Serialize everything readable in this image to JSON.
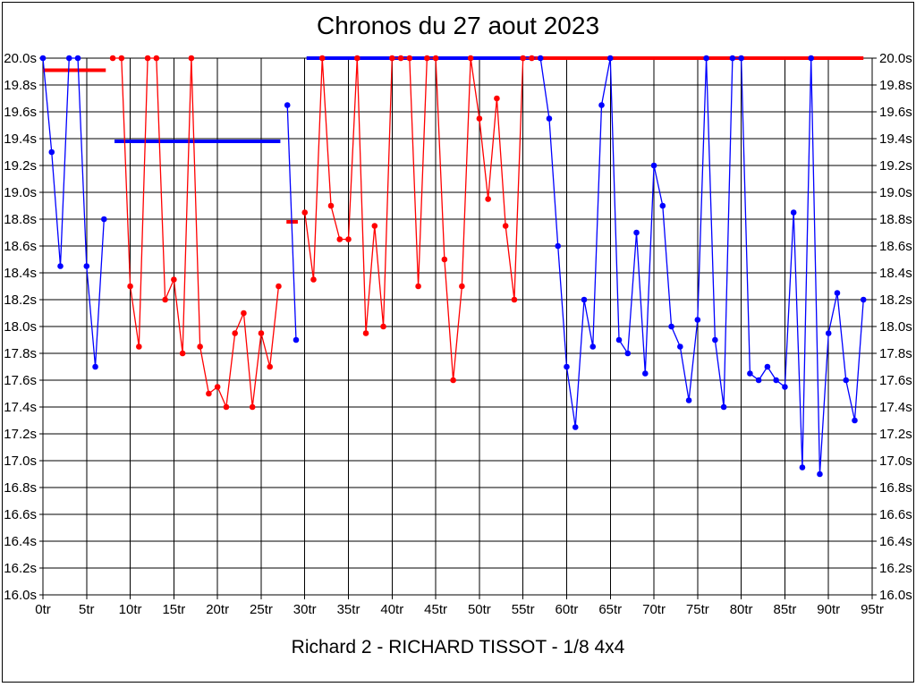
{
  "page": {
    "title": "Chronos du 27 aout 2023",
    "footer": "Richard 2 - RICHARD TISSOT - 1/8 4x4"
  },
  "colors": {
    "red": "#ff0000",
    "blue": "#0000ff",
    "grid": "#000000",
    "background": "#ffffff"
  },
  "chart_data": {
    "type": "line",
    "title": "Chronos du 27 aout 2023",
    "x_unit": "tr",
    "y_unit": "s",
    "ylim": [
      16.0,
      20.0
    ],
    "xlim_laps": [
      0,
      95
    ],
    "grid": true,
    "y_ticks": [
      "20.0s",
      "19.8s",
      "19.6s",
      "19.4s",
      "19.2s",
      "19.0s",
      "18.8s",
      "18.6s",
      "18.4s",
      "18.2s",
      "18.0s",
      "17.8s",
      "17.6s",
      "17.4s",
      "17.2s",
      "17.0s",
      "16.8s",
      "16.6s",
      "16.4s",
      "16.2s",
      "16.0s"
    ],
    "x_ticks": [
      "0tr",
      "5tr",
      "10tr",
      "15tr",
      "20tr",
      "25tr",
      "30tr",
      "35tr",
      "40tr",
      "45tr",
      "50tr",
      "55tr",
      "60tr",
      "65tr",
      "70tr",
      "75tr",
      "80tr",
      "85tr",
      "90tr",
      "95tr"
    ],
    "series": [
      {
        "name": "run-1-blue",
        "color": "blue",
        "start_lap": 0,
        "laps": [
          20.0,
          19.3,
          18.45,
          20.0,
          20.0,
          18.45,
          17.7,
          18.8
        ]
      },
      {
        "name": "run-2-red",
        "color": "red",
        "start_lap": 8,
        "laps": [
          20.0,
          20.0,
          18.3,
          17.85,
          20.0,
          20.0,
          18.2,
          18.35,
          17.8,
          20.0,
          17.85,
          17.5,
          17.55,
          17.4,
          17.95,
          18.1,
          17.4,
          17.95,
          17.7,
          18.3
        ]
      },
      {
        "name": "run-3-blue",
        "color": "blue",
        "start_lap": 28,
        "laps": [
          19.65,
          17.9
        ]
      },
      {
        "name": "run-4-red",
        "color": "red",
        "start_lap": 30,
        "laps": [
          18.85,
          18.35,
          20.0,
          18.9,
          18.65,
          18.65,
          20.0,
          17.95,
          18.75,
          18.0,
          20.0,
          20.0,
          20.0,
          18.3,
          20.0,
          20.0,
          18.5,
          17.6,
          18.3,
          20.0,
          19.55,
          18.95,
          19.7,
          18.75,
          18.2,
          20.0,
          20.0
        ]
      },
      {
        "name": "run-5-blue",
        "color": "blue",
        "start_lap": 57,
        "laps": [
          20.0,
          19.55,
          18.6,
          17.7,
          17.25,
          18.2,
          17.85,
          19.65,
          20.0,
          17.9,
          17.8,
          18.7,
          17.65,
          19.2,
          18.9,
          18.0,
          17.85,
          17.45,
          18.05,
          20.0,
          17.9,
          17.4,
          20.0,
          20.0,
          17.65,
          17.6,
          17.7,
          17.6,
          17.55,
          18.85,
          16.95,
          20.0,
          16.9,
          17.95,
          18.25,
          17.6,
          17.3,
          18.2
        ]
      }
    ],
    "marker_lines": [
      {
        "color": "red",
        "value": 19.91,
        "from_lap": 0.0,
        "to_lap": 7.2
      },
      {
        "color": "blue",
        "value": 19.38,
        "from_lap": 8.2,
        "to_lap": 27.2
      },
      {
        "color": "red",
        "value": 18.78,
        "from_lap": 27.9,
        "to_lap": 29.2
      },
      {
        "color": "blue",
        "value": 20.0,
        "from_lap": 30.2,
        "to_lap": 57.0
      },
      {
        "color": "red",
        "value": 20.0,
        "from_lap": 56.4,
        "to_lap": 94.0
      }
    ]
  }
}
